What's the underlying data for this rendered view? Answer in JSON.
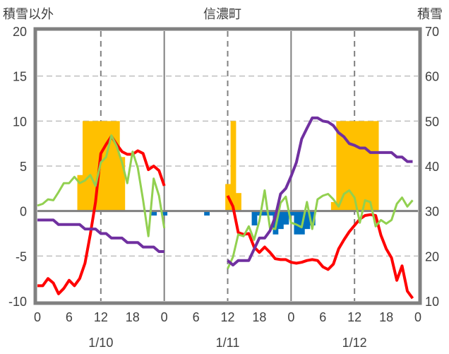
{
  "chart_data": {
    "type": "line",
    "title": "信濃町",
    "ylabel_left": "積雪以外",
    "ylabel_right": "積雪",
    "ylim_left": [
      -10,
      20
    ],
    "ylim_right": [
      10,
      70
    ],
    "yticks_left": [
      "20",
      "15",
      "10",
      "5",
      "0",
      "-5",
      "-10"
    ],
    "yticks_right": [
      "70",
      "60",
      "50",
      "40",
      "30",
      "20",
      "10"
    ],
    "xticks": [
      "0",
      "6",
      "12",
      "18",
      "0",
      "6",
      "12",
      "18",
      "0",
      "6",
      "12",
      "18",
      "0"
    ],
    "date_labels": [
      "1/10",
      "1/11",
      "1/12"
    ],
    "x_unit": "hours from 1/10 0:00",
    "grid": true,
    "colors": {
      "temperature": "#ff0000",
      "green": "#92d050",
      "snow_depth": "#7030a0",
      "orange_bars": "#ffc000",
      "blue_bars": "#0070c0",
      "frame": "#808080"
    },
    "series": [
      {
        "name": "temperature",
        "axis": "left",
        "color": "#ff0000",
        "start": 0,
        "values": [
          -8.3,
          -8.3,
          -7.5,
          -8.0,
          -9.2,
          -8.6,
          -7.7,
          -8.3,
          -7.5,
          -5.8,
          -2.6,
          1.0,
          6.4,
          7.4,
          8.3,
          7.4,
          6.6,
          6.3,
          6.3,
          6.7,
          6.4,
          4.6,
          5.0,
          4.5,
          2.8,
          null,
          null,
          null,
          null,
          null,
          null,
          null,
          null,
          null,
          null,
          null,
          1.7,
          0.5,
          -2.4,
          -2.6,
          -2.5,
          -4.0,
          -4.6,
          -4.0,
          -4.6,
          -5.3,
          -5.4,
          -5.4,
          -5.7,
          -5.8,
          -5.7,
          -5.5,
          -5.4,
          -5.5,
          -6.2,
          -6.5,
          -5.9,
          -4.2,
          -3.2,
          -2.3,
          -1.6,
          -0.9,
          -0.5,
          -0.4,
          -0.5,
          -2.7,
          -4.2,
          -5.2,
          -7.7,
          -6.1,
          -8.9,
          -9.7
        ]
      },
      {
        "name": "green",
        "axis": "left",
        "color": "#92d050",
        "start": 0,
        "values": [
          0.6,
          0.8,
          1.3,
          1.2,
          2.1,
          3.1,
          3.1,
          3.8,
          3.1,
          3.4,
          4.0,
          2.8,
          5.4,
          6.0,
          8.4,
          7.2,
          5.4,
          3.1,
          6.6,
          4.8,
          1.2,
          -2.8,
          3.6,
          1.7,
          -1.9,
          null,
          null,
          null,
          null,
          null,
          null,
          null,
          null,
          null,
          null,
          null,
          -6.4,
          -5.1,
          -2.6,
          -2.8,
          -1.7,
          -3.2,
          -1.1,
          2.3,
          -1.9,
          -2.0,
          0.9,
          1.6,
          -1.3,
          -1.5,
          -1.8,
          1.0,
          -2.0,
          1.3,
          1.7,
          1.9,
          1.3,
          0.5,
          1.9,
          2.3,
          1.5,
          -1.3,
          1.2,
          1.0,
          -1.7,
          -1.0,
          -1.4,
          -1.0,
          0.8,
          1.5,
          0.5,
          1.2
        ]
      },
      {
        "name": "snow_depth",
        "axis": "right",
        "color": "#7030a0",
        "start": 0,
        "values": [
          28,
          28,
          28,
          28,
          27,
          27,
          27,
          27,
          27,
          26,
          26,
          26,
          25,
          25,
          24,
          24,
          24,
          23,
          23,
          23,
          22,
          22,
          22,
          21,
          21,
          null,
          null,
          null,
          null,
          null,
          null,
          null,
          null,
          null,
          null,
          null,
          19,
          18,
          19,
          19,
          19,
          21.5,
          24,
          24,
          25.6,
          28.7,
          33.8,
          35,
          37.7,
          40.8,
          46,
          48.4,
          50.7,
          50.7,
          50,
          49.8,
          49,
          47.4,
          46.5,
          45,
          44.6,
          44,
          44,
          43,
          43,
          43,
          43,
          43,
          42,
          42,
          41,
          41
        ]
      }
    ],
    "bars": [
      {
        "name": "orange_bars",
        "axis": "left",
        "color": "#ffc000",
        "points": [
          [
            8,
            4
          ],
          [
            9,
            10
          ],
          [
            10,
            10
          ],
          [
            11,
            10
          ],
          [
            12,
            10
          ],
          [
            13,
            10
          ],
          [
            14,
            10
          ],
          [
            15,
            10
          ],
          [
            16,
            6
          ],
          [
            36,
            3
          ],
          [
            37,
            10
          ],
          [
            38,
            2
          ],
          [
            56,
            1
          ],
          [
            57,
            10
          ],
          [
            58,
            10
          ],
          [
            59,
            10
          ],
          [
            60,
            10
          ],
          [
            61,
            10
          ],
          [
            62,
            10
          ],
          [
            63,
            10
          ],
          [
            64,
            10
          ]
        ]
      },
      {
        "name": "blue_bars",
        "axis": "left",
        "color": "#0070c0",
        "points": [
          [
            22,
            -0.5
          ],
          [
            24,
            -0.5
          ],
          [
            32,
            -0.5
          ],
          [
            41,
            -1.6
          ],
          [
            42,
            -0.5
          ],
          [
            43,
            -0.5
          ],
          [
            44,
            -0.5
          ],
          [
            45,
            -2.6
          ],
          [
            46,
            -2.0
          ],
          [
            47,
            -1.5
          ],
          [
            48,
            -0.5
          ],
          [
            49,
            -2.6
          ],
          [
            50,
            -2.6
          ],
          [
            51,
            -2.0
          ],
          [
            52,
            -1.6
          ]
        ]
      }
    ]
  }
}
